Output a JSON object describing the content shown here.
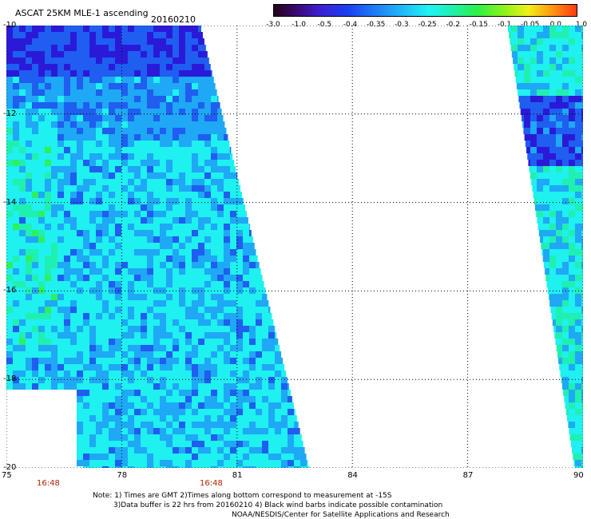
{
  "title": "ASCAT 25KM MLE-1 ascending",
  "date": "20160210",
  "colorbar": {
    "labels": [
      "-3.0",
      "-1.0",
      "-0.5",
      "-0.4",
      "-0.35",
      "-0.3",
      "-0.25",
      "-0.2",
      "-0.15",
      "-0.1",
      "-0.05",
      "0.0",
      "1.0"
    ]
  },
  "axes": {
    "lat_labels": [
      "-10",
      "-12",
      "-14",
      "-16",
      "-18",
      "-20"
    ],
    "lon_labels": [
      "75",
      "78",
      "81",
      "84",
      "87",
      "90"
    ],
    "lat_range": [
      -20,
      -10
    ],
    "lon_range": [
      75,
      90
    ],
    "grid": "dotted"
  },
  "times": [
    "16:48",
    "16:48"
  ],
  "notes": {
    "line1": "Note: 1) Times are GMT 2)Times along bottom correspond to measurement at -15S",
    "line2": "3)Data buffer is 22 hrs from 20160210 4) Black wind barbs indicate possible contamination",
    "line3": "NOAA/NESDIS/Center for Satellite Applications and Research"
  },
  "colors": {
    "dark_blue": "#2a1ad8",
    "blue": "#1f5ef0",
    "light_blue": "#1fa8f5",
    "cyan": "#1ff0f0",
    "aqua": "#1ff0b0",
    "green": "#2cf060",
    "grid": "#000000"
  }
}
